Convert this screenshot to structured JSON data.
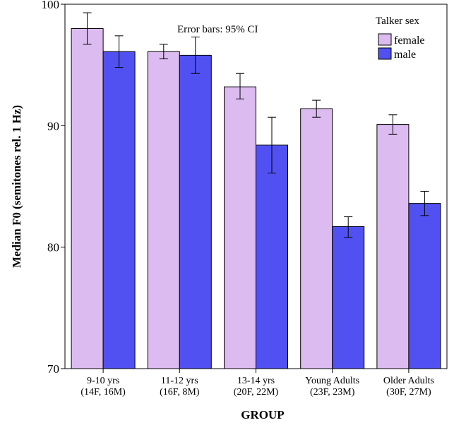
{
  "chart_data": {
    "type": "bar",
    "ylabel": "Median F0 (semitones rel. 1 Hz)",
    "xlabel": "GROUP",
    "annotation": "Error bars: 95% CI",
    "ylim": [
      70,
      100
    ],
    "yticks": [
      "70",
      "80",
      "90",
      "100"
    ],
    "categories": [
      {
        "line1": "9-10 yrs",
        "line2": "(14F, 16M)"
      },
      {
        "line1": "11-12 yrs",
        "line2": "(16F, 8M)"
      },
      {
        "line1": "13-14 yrs",
        "line2": "(20F, 22M)"
      },
      {
        "line1": "Young Adults",
        "line2": "(23F, 23M)"
      },
      {
        "line1": "Older Adults",
        "line2": "(30F, 27M)"
      }
    ],
    "legend": {
      "title": "Talker sex",
      "position": "top-right"
    },
    "series": [
      {
        "name": "female",
        "color": "#dcbcf0",
        "values": [
          98.0,
          96.1,
          93.2,
          91.4,
          90.1
        ],
        "ci_low": [
          96.7,
          95.5,
          92.2,
          90.7,
          89.3
        ],
        "ci_high": [
          99.3,
          96.7,
          94.3,
          92.1,
          90.9
        ]
      },
      {
        "name": "male",
        "color": "#5151f2",
        "values": [
          96.1,
          95.8,
          88.4,
          81.7,
          83.6
        ],
        "ci_low": [
          94.8,
          94.3,
          86.1,
          80.8,
          82.6
        ],
        "ci_high": [
          97.4,
          97.3,
          90.7,
          82.5,
          84.6
        ]
      }
    ],
    "grid": false
  }
}
